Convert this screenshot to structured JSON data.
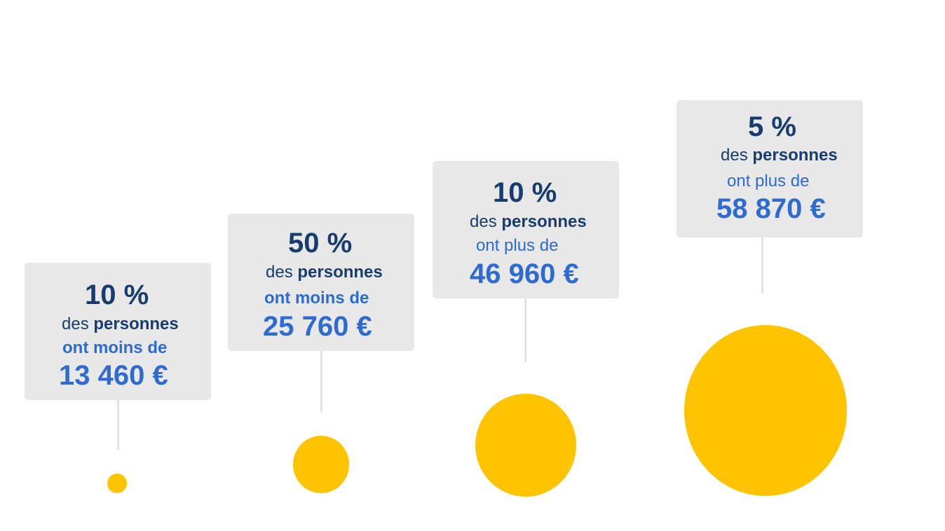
{
  "accent_colors": {
    "dark_blue": "#173d6e",
    "blue": "#2e6bd1",
    "card_gray": "#e8e8e9",
    "coin_yellow": "#ffc400"
  },
  "cards": [
    {
      "percent": "10 %",
      "des": "des ",
      "personnes": "personnes",
      "comparison": "ont moins de",
      "amount": "13 460 €"
    },
    {
      "percent": "50 %",
      "des": "des ",
      "personnes": "personnes",
      "comparison": "ont moins de",
      "amount": "25 760 €"
    },
    {
      "percent": "10 %",
      "des": "des ",
      "personnes": "personnes",
      "comparison": "ont plus de",
      "amount": "46 960 €"
    },
    {
      "percent": "5 %",
      "des": "des ",
      "personnes": "personnes",
      "comparison": "ont plus de",
      "amount": "58 870 €"
    }
  ]
}
